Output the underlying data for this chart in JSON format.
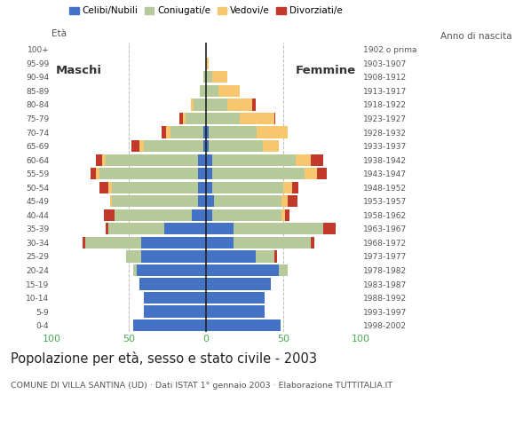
{
  "age_groups": [
    "0-4",
    "5-9",
    "10-14",
    "15-19",
    "20-24",
    "25-29",
    "30-34",
    "35-39",
    "40-44",
    "45-49",
    "50-54",
    "55-59",
    "60-64",
    "65-69",
    "70-74",
    "75-79",
    "80-84",
    "85-89",
    "90-94",
    "95-99",
    "100+"
  ],
  "birth_years": [
    "1998-2002",
    "1993-1997",
    "1988-1992",
    "1983-1987",
    "1978-1982",
    "1973-1977",
    "1968-1972",
    "1963-1967",
    "1958-1962",
    "1953-1957",
    "1948-1952",
    "1943-1947",
    "1938-1942",
    "1933-1937",
    "1928-1932",
    "1923-1927",
    "1918-1922",
    "1913-1917",
    "1908-1912",
    "1903-1907",
    "1902 o prima"
  ],
  "male_celibe": [
    47,
    40,
    40,
    43,
    45,
    42,
    42,
    27,
    9,
    5,
    5,
    5,
    5,
    2,
    2,
    0,
    0,
    0,
    0,
    0,
    0
  ],
  "male_coniugato": [
    0,
    0,
    0,
    0,
    2,
    10,
    36,
    36,
    50,
    56,
    56,
    64,
    60,
    38,
    21,
    13,
    8,
    4,
    2,
    0,
    0
  ],
  "male_vedovo": [
    0,
    0,
    0,
    0,
    0,
    0,
    0,
    0,
    0,
    1,
    2,
    2,
    2,
    3,
    3,
    2,
    2,
    0,
    0,
    0,
    0
  ],
  "male_divorziato": [
    0,
    0,
    0,
    0,
    0,
    0,
    2,
    2,
    7,
    0,
    6,
    4,
    4,
    5,
    3,
    2,
    0,
    0,
    0,
    0,
    0
  ],
  "female_nubile": [
    48,
    38,
    38,
    42,
    47,
    32,
    18,
    18,
    4,
    5,
    4,
    4,
    4,
    2,
    2,
    0,
    0,
    0,
    0,
    0,
    0
  ],
  "female_coniugata": [
    0,
    0,
    0,
    0,
    6,
    12,
    50,
    58,
    45,
    44,
    46,
    60,
    54,
    35,
    31,
    22,
    14,
    8,
    4,
    0,
    0
  ],
  "female_vedova": [
    0,
    0,
    0,
    0,
    0,
    0,
    0,
    0,
    2,
    4,
    6,
    8,
    10,
    10,
    20,
    22,
    16,
    14,
    10,
    2,
    0
  ],
  "female_divorziata": [
    0,
    0,
    0,
    0,
    0,
    2,
    2,
    8,
    3,
    6,
    4,
    6,
    8,
    0,
    0,
    1,
    2,
    0,
    0,
    0,
    0
  ],
  "color_celibe": "#4472c4",
  "color_coniugato": "#b5c99a",
  "color_vedovo": "#f6c76e",
  "color_divorziato": "#c0392b",
  "xlim": 100,
  "title": "Popolazione per età, sesso e stato civile - 2003",
  "subtitle": "COMUNE DI VILLA SANTINA (UD) · Dati ISTAT 1° gennaio 2003 · Elaborazione TUTTITALIA.IT",
  "eta_label": "Età",
  "anno_label": "Anno di nascita",
  "maschi_label": "Maschi",
  "femmine_label": "Femmine",
  "legend_labels": [
    "Celibi/Nubili",
    "Coniugati/e",
    "Vedovi/e",
    "Divorziati/e"
  ],
  "bar_height": 0.85,
  "background": "#ffffff",
  "tick_color_y": "#555555",
  "tick_color_x": "#4aaa50",
  "grid_dash_color": "#bbbbbb",
  "center_line_color": "#222222",
  "title_color": "#222222",
  "subtitle_color": "#555555"
}
